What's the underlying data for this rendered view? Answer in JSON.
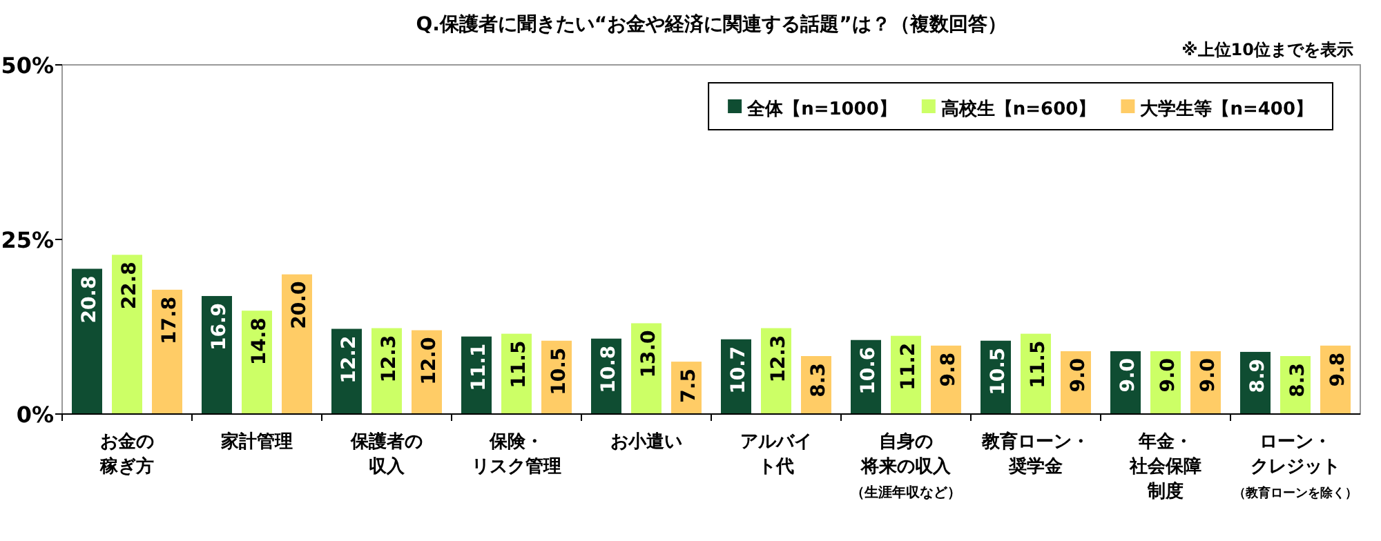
{
  "chart_data": {
    "type": "bar",
    "title": "Q.保護者に聞きたい“お金や経済に関連する話題”は？（複数回答）",
    "annotations": [
      "※上位10位までを表示"
    ],
    "categories": [
      "お金の稼ぎ方",
      "家計管理",
      "保護者の収入",
      "保険・リスク管理",
      "お小遣い",
      "アルバイト代",
      "自身の将来の収入（生涯年収など）",
      "教育ローン・奨学金",
      "年金・社会保障制度",
      "ローン・クレジット（教育ローンを除く）"
    ],
    "series": [
      {
        "name": "全体【n=1000】",
        "color": "#0f4d32",
        "values": [
          20.8,
          16.9,
          12.2,
          11.1,
          10.8,
          10.7,
          10.6,
          10.5,
          9.0,
          8.9
        ],
        "value_labels": [
          "20.8",
          "16.9",
          "12.2",
          "11.1",
          "10.8",
          "10.7",
          "10.6",
          "10.5",
          "9.0",
          "8.9"
        ]
      },
      {
        "name": "高校生【n=600】",
        "color": "#ccff66",
        "values": [
          22.8,
          14.8,
          12.3,
          11.5,
          13.0,
          12.3,
          11.2,
          11.5,
          9.0,
          8.3
        ],
        "value_labels": [
          "22.8",
          "14.8",
          "12.3",
          "11.5",
          "13.0",
          "12.3",
          "11.2",
          "11.5",
          "9.0",
          "8.3"
        ]
      },
      {
        "name": "大学生等【n=400】",
        "color": "#ffcc66",
        "values": [
          17.8,
          20.0,
          12.0,
          10.5,
          7.5,
          8.3,
          9.8,
          9.0,
          9.0,
          9.8
        ],
        "value_labels": [
          "17.8",
          "20.0",
          "12.0",
          "10.5",
          "7.5",
          "8.3",
          "9.8",
          "9.0",
          "9.0",
          "9.8"
        ]
      }
    ],
    "ylim": [
      0,
      50
    ],
    "yticks": [
      {
        "value": 0,
        "label": "0%"
      },
      {
        "value": 25,
        "label": "25%"
      },
      {
        "value": 50,
        "label": "50%"
      }
    ],
    "legend": "top right"
  }
}
